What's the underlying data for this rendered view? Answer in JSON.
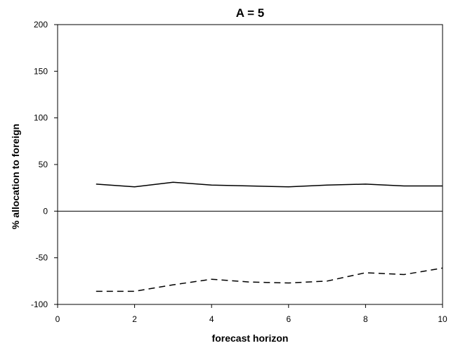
{
  "chart_data": {
    "type": "line",
    "title": "A = 5",
    "xlabel": "forecast horizon",
    "ylabel": "% allocation to foreign",
    "xlim": [
      0,
      10
    ],
    "ylim": [
      -100,
      200
    ],
    "x_ticks": [
      0,
      2,
      4,
      6,
      8,
      10
    ],
    "y_ticks": [
      200,
      150,
      100,
      50,
      0,
      -50,
      -100
    ],
    "grid": false,
    "legend": "none",
    "zero_line": true,
    "series": [
      {
        "style": "solid",
        "color": "#000000",
        "x": [
          1,
          2,
          3,
          4,
          5,
          6,
          7,
          8,
          9,
          10
        ],
        "y": [
          29,
          26,
          31,
          28,
          27,
          26,
          28,
          29,
          27,
          27
        ]
      },
      {
        "style": "dashed",
        "color": "#000000",
        "x": [
          1,
          2,
          3,
          4,
          5,
          6,
          7,
          8,
          9,
          10
        ],
        "y": [
          -86,
          -86,
          -79,
          -73,
          -76,
          -77,
          -75,
          -66,
          -68,
          -61
        ]
      }
    ]
  }
}
